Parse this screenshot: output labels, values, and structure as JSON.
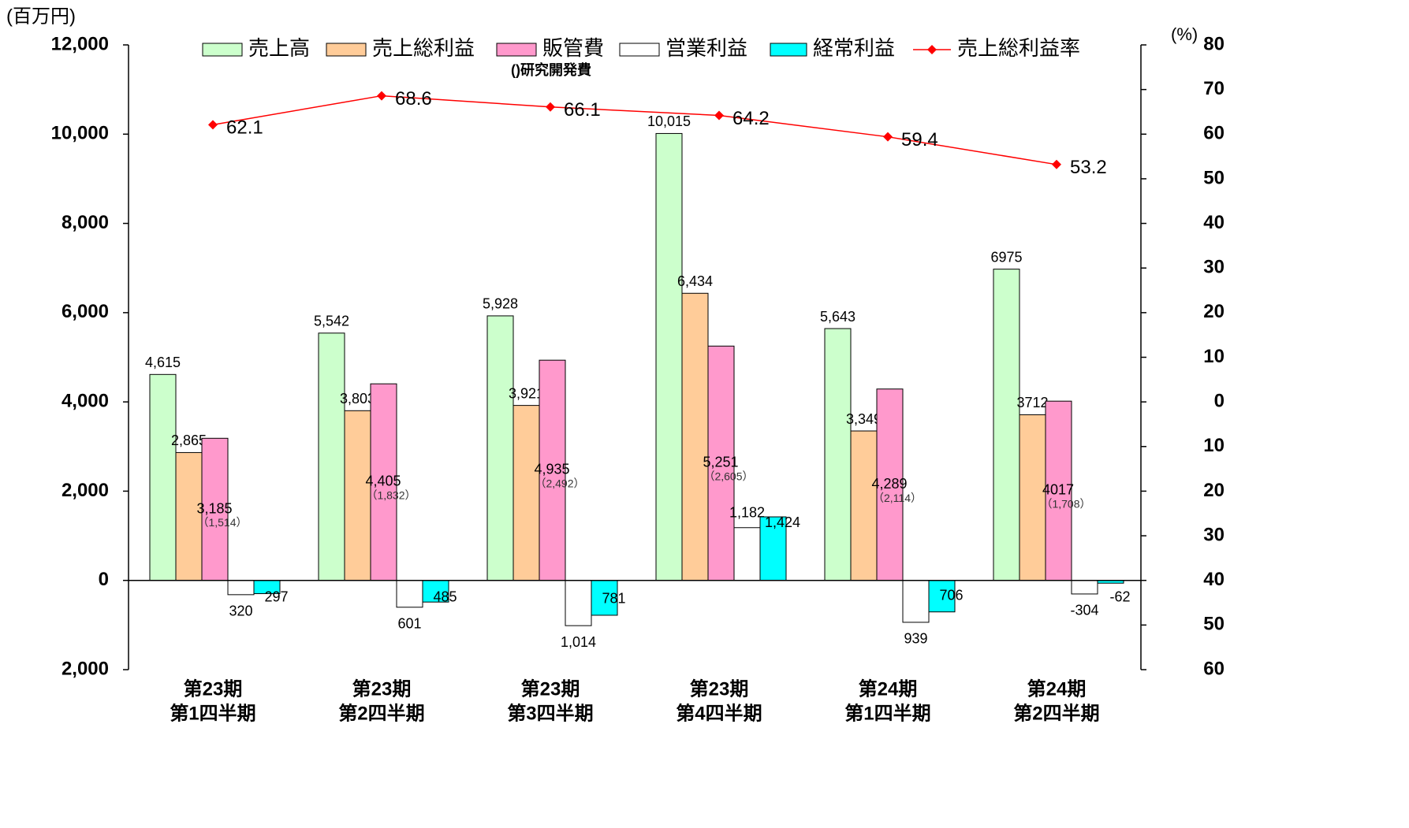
{
  "chart_data": {
    "type": "bar",
    "y_label": "(百万円)",
    "y2_label": "(%)",
    "categories": [
      [
        "第23期",
        "第1四半期"
      ],
      [
        "第23期",
        "第2四半期"
      ],
      [
        "第23期",
        "第3四半期"
      ],
      [
        "第23期",
        "第4四半期"
      ],
      [
        "第24期",
        "第1四半期"
      ],
      [
        "第24期",
        "第2四半期"
      ]
    ],
    "ylim": [
      -2000,
      12000
    ],
    "yticks": [
      {
        "value": -2000,
        "label": "2,000"
      },
      0,
      {
        "value": 2000,
        "label": "2,000"
      },
      {
        "value": 4000,
        "label": "4,000"
      },
      {
        "value": 6000,
        "label": "6,000"
      },
      {
        "value": 8000,
        "label": "8,000"
      },
      {
        "value": 10000,
        "label": "10,000"
      },
      {
        "value": 12000,
        "label": "12,000"
      }
    ],
    "y2lim": [
      -60,
      80
    ],
    "y2ticks": [
      {
        "value": -60,
        "label": "60"
      },
      {
        "value": -50,
        "label": "50"
      },
      {
        "value": -40,
        "label": "40"
      },
      {
        "value": -30,
        "label": "30"
      },
      {
        "value": -20,
        "label": "20"
      },
      {
        "value": -10,
        "label": "10"
      },
      0,
      10,
      20,
      30,
      40,
      50,
      60,
      70,
      80
    ],
    "grid": false,
    "series": [
      {
        "name": "売上高",
        "type": "bar",
        "color": "#ccffcc",
        "values": [
          4615,
          5542,
          5928,
          10015,
          5643,
          6975
        ],
        "value_labels": [
          "4,615",
          "5,542",
          "5,928",
          "10,015",
          "5,643",
          "6975"
        ]
      },
      {
        "name": "売上総利益",
        "type": "bar",
        "color": "#ffcc99",
        "values": [
          2865,
          3803,
          3921,
          6434,
          3349,
          3712
        ],
        "value_labels": [
          "2,865",
          "3,803",
          "3,921",
          "6,434",
          "3,349",
          "3712"
        ]
      },
      {
        "name": "販管費",
        "type": "bar",
        "color": "#ff99cc",
        "values": [
          3185,
          4405,
          4935,
          5251,
          4289,
          4017
        ],
        "value_labels": [
          "3,185",
          "4,405",
          "4,935",
          "5,251",
          "4,289",
          "4017"
        ],
        "note": "()研究開発費",
        "notes": [
          "（1,514）",
          "（1,832）",
          "（2,492）",
          "（2,605）",
          "（2,114）",
          "（1,708）"
        ]
      },
      {
        "name": "営業利益",
        "type": "bar",
        "color": "#ffffff",
        "values": [
          -320,
          -601,
          -1014,
          1182,
          -939,
          -304
        ],
        "value_labels": [
          "320",
          "601",
          "1,014",
          "1,182",
          "939",
          "-304"
        ]
      },
      {
        "name": "経常利益",
        "type": "bar",
        "color": "#00ffff",
        "values": [
          -297,
          -485,
          -781,
          1424,
          -706,
          -62
        ],
        "value_labels": [
          "297",
          "485",
          "781",
          "1,424",
          "706",
          "-62"
        ]
      },
      {
        "name": "売上総利益率",
        "type": "line",
        "axis": "y2",
        "color": "#ff0000",
        "values": [
          62.1,
          68.6,
          66.1,
          64.2,
          59.4,
          53.2
        ]
      }
    ]
  }
}
